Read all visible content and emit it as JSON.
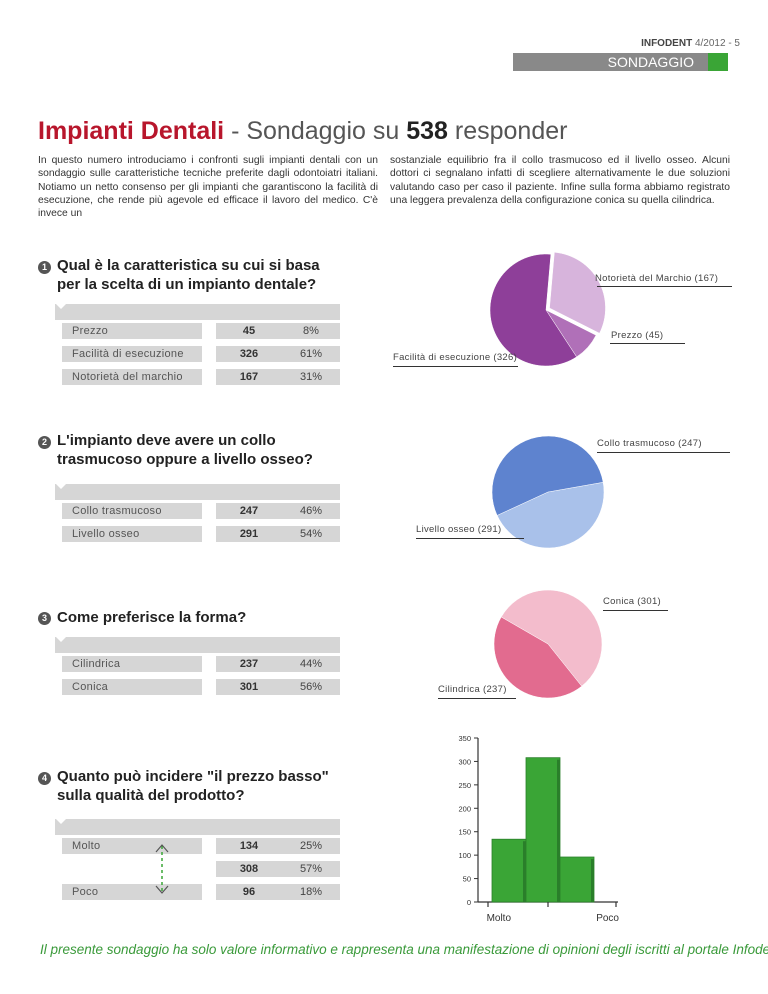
{
  "header": {
    "magazine": "INFODENT",
    "issue": "4/2012 - 5",
    "section": "SONDAGGIO"
  },
  "title": {
    "part1": "Impianti Dentali",
    "part2": " - Sondaggio su ",
    "count": "538",
    "part3": " responder"
  },
  "intro": {
    "col1": "In questo numero introduciamo i confronti sugli impianti dentali con un sondaggio sulle caratteristiche tecniche preferite dagli odontoiatri italiani. Notiamo un netto consenso per gli impianti che garantiscono la facilità di esecuzione, che rende più agevole ed efficace il lavoro del medico. C'è invece un",
    "col2": "sostanziale equilibrio fra il collo trasmucoso ed il livello osseo. Alcuni dottori ci segnalano infatti di scegliere alternativamente le due soluzioni valutando caso per caso il paziente. Infine sulla forma abbiamo registrato una leggera prevalenza della configurazione conica su quella cilindrica."
  },
  "questions": [
    {
      "num": "1",
      "line1": "Qual è la caratteristica su cui si basa",
      "line2": "per la scelta di un impianto dentale?",
      "rows": [
        {
          "label": "Prezzo",
          "count": "45",
          "pct": "8%"
        },
        {
          "label": "Facilità di esecuzione",
          "count": "326",
          "pct": "61%"
        },
        {
          "label": "Notorietà del marchio",
          "count": "167",
          "pct": "31%"
        }
      ],
      "pie_labels": [
        "Notorietà del Marchio (167)",
        "Prezzo (45)",
        "Facilità di esecuzione (326)"
      ]
    },
    {
      "num": "2",
      "line1": "L'impianto deve avere un collo",
      "line2": "trasmucoso oppure a livello osseo?",
      "rows": [
        {
          "label": "Collo trasmucoso",
          "count": "247",
          "pct": "46%"
        },
        {
          "label": "Livello osseo",
          "count": "291",
          "pct": "54%"
        }
      ],
      "pie_labels": [
        "Collo trasmucoso (247)",
        "Livello osseo (291)"
      ]
    },
    {
      "num": "3",
      "line1": "Come preferisce la forma?",
      "rows": [
        {
          "label": "Cilindrica",
          "count": "237",
          "pct": "44%"
        },
        {
          "label": "Conica",
          "count": "301",
          "pct": "56%"
        }
      ],
      "pie_labels": [
        "Conica (301)",
        "Cilindrica (237)"
      ]
    },
    {
      "num": "4",
      "line1": "Quanto può incidere \"il prezzo basso\"",
      "line2": "sulla qualità del prodotto?",
      "rows": [
        {
          "label": "Molto",
          "count": "134",
          "pct": "25%"
        },
        {
          "label": "",
          "count": "308",
          "pct": "57%"
        },
        {
          "label": "Poco",
          "count": "96",
          "pct": "18%"
        }
      ]
    }
  ],
  "chart_data": [
    {
      "type": "pie",
      "labels": [
        "Notorietà del Marchio",
        "Prezzo",
        "Facilità di esecuzione"
      ],
      "values": [
        167,
        45,
        326
      ],
      "colors": [
        "#d7b4dc",
        "#b070b8",
        "#8e3f99"
      ]
    },
    {
      "type": "pie",
      "labels": [
        "Collo trasmucoso",
        "Livello osseo"
      ],
      "values": [
        247,
        291
      ],
      "colors": [
        "#a9c1ea",
        "#5e83cf"
      ]
    },
    {
      "type": "pie",
      "labels": [
        "Conica",
        "Cilindrica"
      ],
      "values": [
        301,
        237
      ],
      "colors": [
        "#f3bccc",
        "#e26b8f"
      ]
    },
    {
      "type": "bar",
      "categories": [
        "Molto",
        "",
        "Poco"
      ],
      "values": [
        134,
        308,
        96
      ],
      "ylim": [
        0,
        350
      ],
      "yticks": [
        0,
        50,
        100,
        150,
        200,
        250,
        300,
        350
      ],
      "xlabels": [
        "Molto",
        "Poco"
      ],
      "color": "#3aa536",
      "grid": false
    }
  ],
  "footer": "Il presente sondaggio ha solo valore informativo e rappresenta una manifestazione di opinioni degli iscritti al portale Infodent.it"
}
